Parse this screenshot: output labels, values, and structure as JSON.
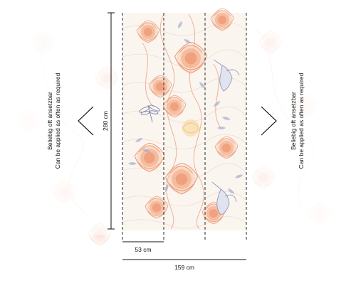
{
  "dimensions": {
    "height": "280 cm",
    "strip_width": "53 cm",
    "total_width": "159 cm"
  },
  "side_note": {
    "line_de": "Beliebig oft ansetzbar",
    "line_en": "Can be applied as often as required"
  },
  "strip_count": 3,
  "icons": {
    "left_arrow": "chevron-left-icon",
    "right_arrow": "chevron-right-icon",
    "dragonfly": "dragonfly-icon",
    "hummingbird": "hummingbird-icon"
  },
  "colors": {
    "flower_orange": "#f2a37e",
    "flower_peach": "#f6c8ad",
    "leaf_blue": "#8f9cc2",
    "accent_yellow": "#f3c76b",
    "dash_line": "#2a2a2a"
  }
}
